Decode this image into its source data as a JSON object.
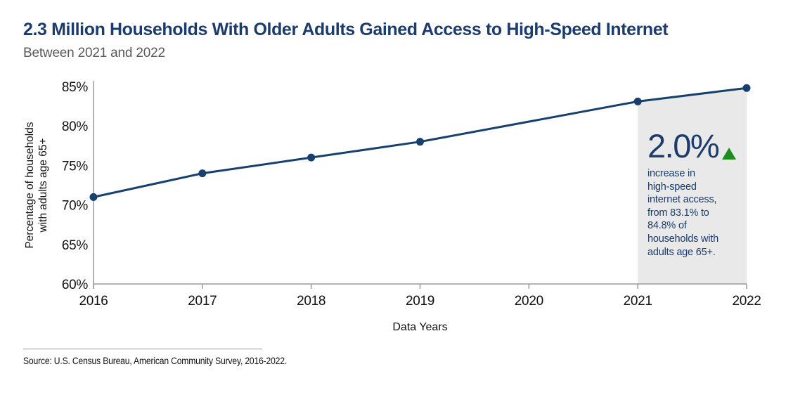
{
  "header": {
    "title": "2.3 Million Households With Older Adults Gained Access to High-Speed Internet",
    "subtitle": "Between 2021 and 2022"
  },
  "chart_data": {
    "type": "line",
    "x": [
      2016,
      2017,
      2018,
      2019,
      2021,
      2022
    ],
    "series": [
      {
        "name": "Percentage of households with adults age 65+",
        "values": [
          71,
          74,
          76,
          78,
          83.1,
          84.8
        ]
      }
    ],
    "note": "No data point plotted for 2020; line connects 2019 directly to 2021",
    "xlabel": "Data Years",
    "ylabel_lines": [
      "Percentage of households",
      "with adults age 65+"
    ],
    "ylim": [
      60,
      85
    ],
    "yticks": [
      60,
      65,
      70,
      75,
      80,
      85
    ],
    "ytick_labels": [
      "60%",
      "65%",
      "70%",
      "75%",
      "80%",
      "85%"
    ],
    "xticks": [
      2016,
      2017,
      2018,
      2019,
      2020,
      2021,
      2022
    ],
    "xtick_labels": [
      "2016",
      "2017",
      "2018",
      "2019",
      "2020",
      "2021",
      "2022"
    ],
    "grid": false,
    "legend": "none",
    "highlight_band": {
      "from": 2021,
      "to": 2022
    }
  },
  "annotation": {
    "value": "2.0%",
    "direction_icon": "up-triangle",
    "lines": [
      "increase in",
      "high-speed",
      "internet access,",
      "from 83.1% to",
      "84.8% of",
      "households with",
      "adults age 65+."
    ]
  },
  "source": {
    "text": "Source: U.S. Census Bureau, American Community Survey, 2016-2022."
  },
  "colors": {
    "navy": "#1b3c6c",
    "line": "#17406e",
    "green": "#1f8c1f",
    "band": "#e9e9e9",
    "axis": "#9b9b9b",
    "tick_text": "#111111",
    "subtitle": "#595959"
  }
}
